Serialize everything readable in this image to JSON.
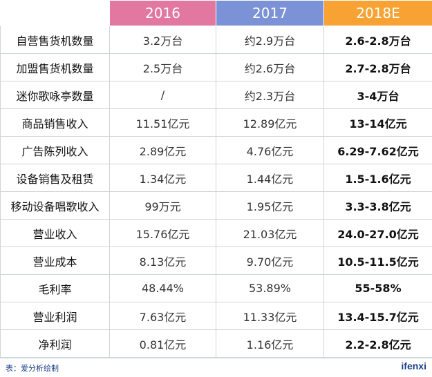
{
  "table": {
    "headers": [
      "",
      "2016",
      "2017",
      "2018E"
    ],
    "rows": [
      [
        "自营售货机数量",
        "3.2万台",
        "约2.9万台",
        "2.6-2.8万台"
      ],
      [
        "加盟售货机数量",
        "2.5万台",
        "约2.6万台",
        "2.7-2.8万台"
      ],
      [
        "迷你歌咏亭数量",
        "/",
        "约2.3万台",
        "3-4万台"
      ],
      [
        "商品销售收入",
        "11.51亿元",
        "12.89亿元",
        "13-14亿元"
      ],
      [
        "广告陈列收入",
        "2.89亿元",
        "4.76亿元",
        "6.29-7.62亿元"
      ],
      [
        "设备销售及租赁",
        "1.34亿元",
        "1.44亿元",
        "1.5-1.6亿元"
      ],
      [
        "移动设备唱歌收入",
        "99万元",
        "1.95亿元",
        "3.3-3.8亿元"
      ],
      [
        "营业收入",
        "15.76亿元",
        "21.03亿元",
        "24.0-27.0亿元"
      ],
      [
        "营业成本",
        "8.13亿元",
        "9.70亿元",
        "10.5-11.5亿元"
      ],
      [
        "毛利率",
        "48.44%",
        "53.89%",
        "55-58%"
      ],
      [
        "营业利润",
        "7.63亿元",
        "11.33亿元",
        "13.4-15.7亿元"
      ],
      [
        "净利润",
        "0.81亿元",
        "1.16亿元",
        "2.2-2.8亿元"
      ]
    ]
  },
  "colors": {
    "header_2016": "#e2779f",
    "header_2017": "#7b93d6",
    "header_2018E": "#f7a233"
  },
  "footer": {
    "source": "表：爱分析绘制",
    "logo": "ifenxi"
  }
}
